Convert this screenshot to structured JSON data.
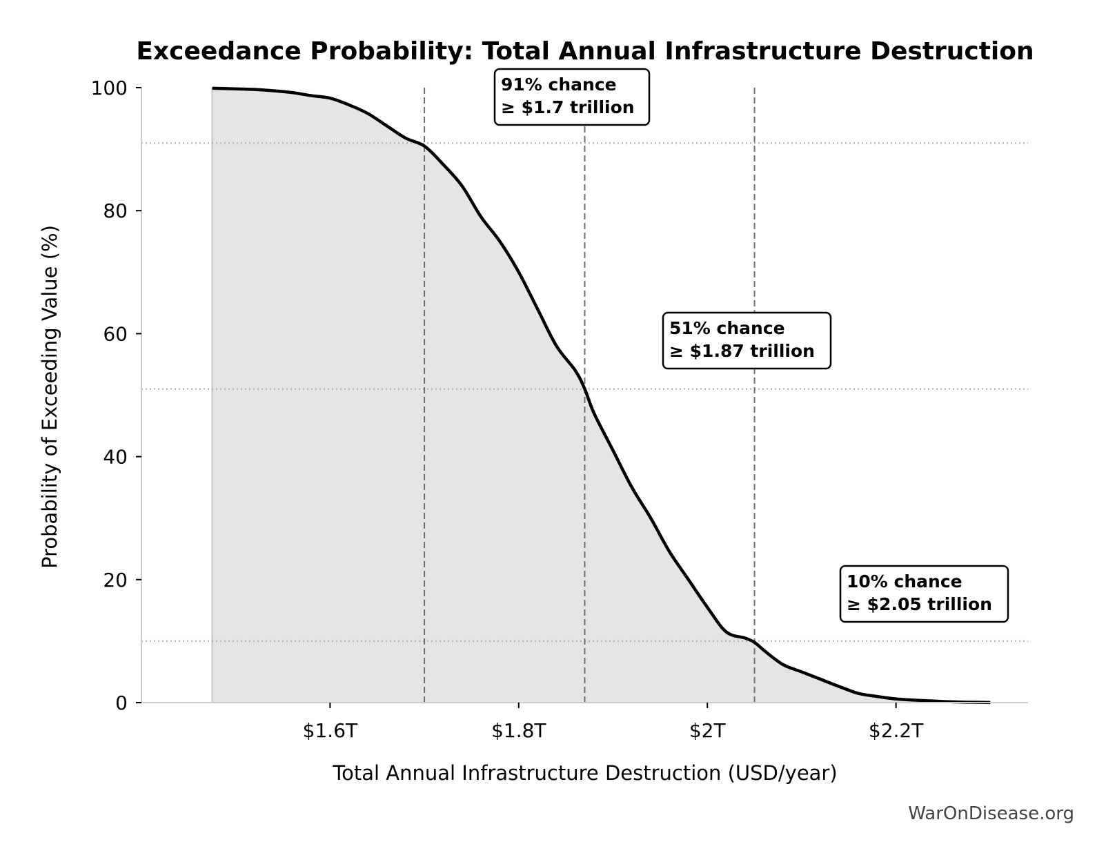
{
  "chart_data": {
    "type": "area",
    "title": "Exceedance Probability: Total Annual Infrastructure Destruction",
    "xlabel": "Total Annual Infrastructure Destruction (USD/year)",
    "ylabel": "Probability of Exceeding Value (%)",
    "x_unit": "trillion USD/year",
    "xlim": [
      1.4,
      2.34
    ],
    "ylim": [
      0,
      100
    ],
    "x_ticks": [
      {
        "value": 1.6,
        "label": "$1.6T"
      },
      {
        "value": 1.8,
        "label": "$1.8T"
      },
      {
        "value": 2.0,
        "label": "$2T"
      },
      {
        "value": 2.2,
        "label": "$2.2T"
      }
    ],
    "y_ticks": [
      {
        "value": 0,
        "label": "0"
      },
      {
        "value": 20,
        "label": "20"
      },
      {
        "value": 40,
        "label": "40"
      },
      {
        "value": 60,
        "label": "60"
      },
      {
        "value": 80,
        "label": "80"
      },
      {
        "value": 100,
        "label": "100"
      }
    ],
    "grid": false,
    "fill_color": "#e5e5e5",
    "line_color": "#000000",
    "series": [
      {
        "x": [
          1.475,
          1.5,
          1.52,
          1.54,
          1.56,
          1.58,
          1.6,
          1.62,
          1.64,
          1.66,
          1.68,
          1.7,
          1.72,
          1.74,
          1.76,
          1.78,
          1.8,
          1.82,
          1.84,
          1.86,
          1.87,
          1.88,
          1.9,
          1.92,
          1.94,
          1.96,
          1.98,
          2.0,
          2.02,
          2.04,
          2.05,
          2.06,
          2.08,
          2.1,
          2.12,
          2.14,
          2.16,
          2.18,
          2.2,
          2.22,
          2.24,
          2.26,
          2.28,
          2.3
        ],
        "values": [
          99.9,
          99.8,
          99.7,
          99.5,
          99.2,
          98.7,
          98.3,
          97.2,
          95.8,
          93.8,
          91.8,
          90.5,
          87.5,
          84,
          79,
          75,
          70,
          64,
          58,
          54,
          51,
          47,
          41,
          35,
          30,
          24.5,
          20,
          15.5,
          11.5,
          10.5,
          9.8,
          8.5,
          6.2,
          5,
          3.8,
          2.6,
          1.5,
          1,
          0.6,
          0.4,
          0.25,
          0.12,
          0.05,
          0.02
        ]
      }
    ],
    "reference_lines": {
      "vertical_x": [
        1.7,
        1.87,
        2.05
      ],
      "horizontal_y": [
        91,
        51,
        10
      ]
    },
    "annotations": [
      {
        "line1": "91% chance",
        "line2": "≥ $1.7 trillion",
        "x": 1.7,
        "y": 91
      },
      {
        "line1": "51% chance",
        "line2": "≥ $1.87 trillion",
        "x": 1.87,
        "y": 51
      },
      {
        "line1": "10% chance",
        "line2": "≥ $2.05 trillion",
        "x": 2.05,
        "y": 10
      }
    ]
  },
  "watermark": "WarOnDisease.org"
}
